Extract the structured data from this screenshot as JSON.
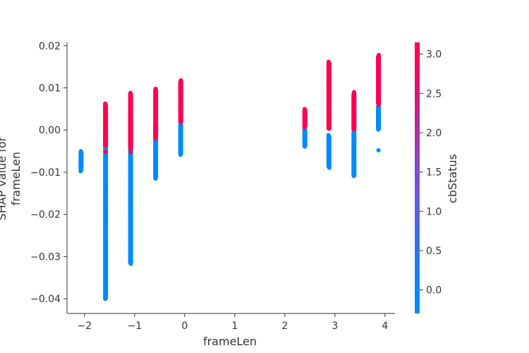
{
  "chart_data": {
    "type": "scatter",
    "title": "",
    "xlabel": "frameLen",
    "ylabel_lines": [
      "SHAP value for",
      "frameLen"
    ],
    "xlim": [
      -2.35,
      4.2
    ],
    "ylim": [
      -0.0435,
      0.0208
    ],
    "x_ticks": [
      -2,
      -1,
      0,
      1,
      2,
      3,
      4
    ],
    "x_tick_labels": [
      "−2",
      "−1",
      "0",
      "1",
      "2",
      "3",
      "4"
    ],
    "y_ticks": [
      -0.04,
      -0.03,
      -0.02,
      -0.01,
      0.0,
      0.01,
      0.02
    ],
    "y_tick_labels": [
      "−0.04",
      "−0.03",
      "−0.02",
      "−0.01",
      "0.00",
      "0.01",
      "0.02"
    ],
    "grid": false,
    "color_feature": "cbStatus",
    "colorbar": {
      "label": "cbStatus",
      "range": [
        -0.3,
        3.15
      ],
      "ticks": [
        0.0,
        0.5,
        1.0,
        1.5,
        2.0,
        2.5,
        3.0
      ],
      "tick_labels": [
        "0.0",
        "0.5",
        "1.0",
        "1.5",
        "2.0",
        "2.5",
        "3.0"
      ],
      "low_color": "#008bfb",
      "mid_color": "#7b4fd6",
      "high_color": "#ff0052"
    },
    "strips": [
      {
        "x": -2.07,
        "low": [
          -0.0098,
          -0.005
        ]
      },
      {
        "x": -1.58,
        "low": [
          -0.0403,
          -0.001
        ],
        "high": [
          -0.004,
          0.0063
        ],
        "high_min_dot": -0.0052
      },
      {
        "x": -1.08,
        "low": [
          -0.0318,
          0.004
        ],
        "high": [
          -0.0045,
          0.0088
        ],
        "high_min_dot": -0.0052
      },
      {
        "x": -0.58,
        "low": [
          -0.0117,
          0.001
        ],
        "high": [
          -0.002,
          0.0098
        ]
      },
      {
        "x": -0.08,
        "low": [
          -0.006,
          0.0015
        ],
        "high": [
          0.0015,
          0.0118
        ]
      },
      {
        "x": 2.4,
        "low": [
          -0.0042,
          0.0005
        ],
        "high": [
          0.0005,
          0.005
        ]
      },
      {
        "x": 2.88,
        "low": [
          -0.009,
          -0.0012
        ],
        "high": [
          0.0,
          0.0162
        ]
      },
      {
        "x": 3.38,
        "low": [
          -0.0112,
          -0.0002
        ],
        "high": [
          -0.0002,
          0.009
        ]
      },
      {
        "x": 3.87,
        "low": [
          -0.0001,
          0.006
        ],
        "low_min_dot": -0.0048,
        "high": [
          0.006,
          0.0178
        ]
      }
    ]
  }
}
